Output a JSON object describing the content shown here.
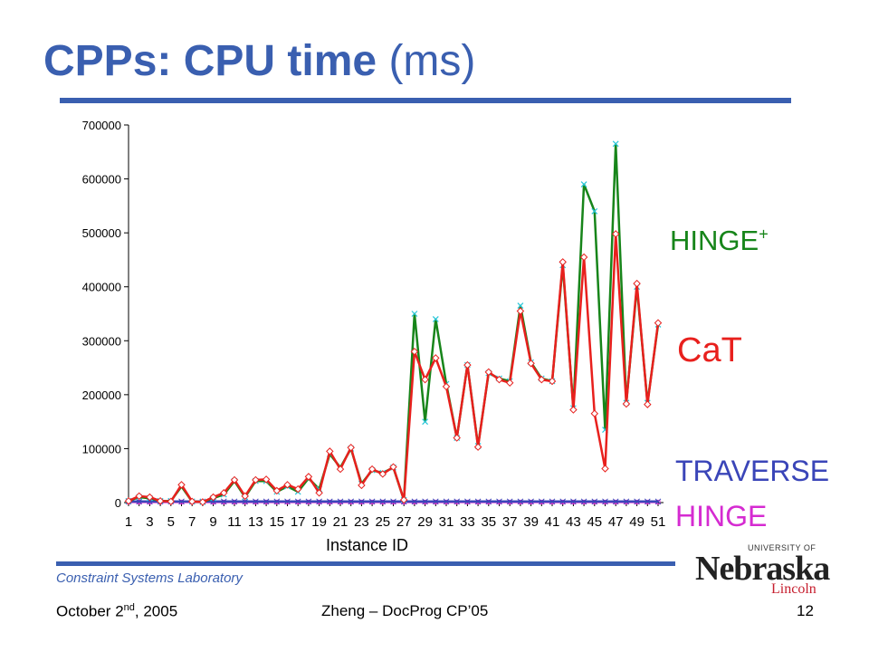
{
  "slide": {
    "title_bold": "CPPs: CPU time",
    "title_rest": "(ms)",
    "lab_name": "Constraint Systems Laboratory",
    "footer_date_main": "October 2",
    "footer_date_sup": "nd",
    "footer_date_end": ", 2005",
    "footer_center": "Zheng – DocProg CP’05",
    "slide_number": "12"
  },
  "logo": {
    "university_of": "UNIVERSITY OF",
    "name": "Nebraska",
    "campus": "Lincoln"
  },
  "colors": {
    "title_blue": "#3a5fb0",
    "cat_red": "#e8201d",
    "hinge_plus_green": "#17851a",
    "traverse_blue": "#3a45b8",
    "hinge_magenta": "#d52bd1",
    "marker_cyan": "#27c6d9"
  },
  "chart_data": {
    "type": "line",
    "xlabel": "Instance ID",
    "ylim": [
      0,
      700000
    ],
    "yticks": [
      0,
      100000,
      200000,
      300000,
      400000,
      500000,
      600000,
      700000
    ],
    "x": [
      1,
      2,
      3,
      4,
      5,
      6,
      7,
      8,
      9,
      10,
      11,
      12,
      13,
      14,
      15,
      16,
      17,
      18,
      19,
      20,
      21,
      22,
      23,
      24,
      25,
      26,
      27,
      28,
      29,
      30,
      31,
      32,
      33,
      34,
      35,
      36,
      37,
      38,
      39,
      40,
      41,
      42,
      43,
      44,
      45,
      46,
      47,
      48,
      49,
      50,
      51
    ],
    "xtick_labels": [
      "1",
      "3",
      "5",
      "7",
      "9",
      "11",
      "13",
      "15",
      "17",
      "19",
      "21",
      "23",
      "25",
      "27",
      "29",
      "31",
      "33",
      "35",
      "37",
      "39",
      "41",
      "43",
      "45",
      "47",
      "49",
      "51"
    ],
    "series": [
      {
        "name": "HINGE",
        "label_main": "HINGE",
        "color": "#d52bd1",
        "values": [
          1000,
          1000,
          1000,
          1000,
          1000,
          1000,
          1000,
          1000,
          1000,
          1000,
          1000,
          1000,
          1000,
          1000,
          1000,
          1000,
          1000,
          1000,
          1000,
          1000,
          1000,
          1000,
          1000,
          1000,
          1000,
          1000,
          1000,
          1000,
          1000,
          1000,
          1000,
          1000,
          1000,
          1000,
          1000,
          1000,
          1000,
          1000,
          1000,
          1000,
          1000,
          1000,
          1000,
          1000,
          1000,
          1000,
          1000,
          1000,
          1000,
          1000,
          1000
        ]
      },
      {
        "name": "TRAVERSE",
        "label_main": "TRAVERSE",
        "color": "#3a45b8",
        "values": [
          2000,
          2000,
          2000,
          2000,
          2000,
          2000,
          2000,
          2000,
          2000,
          2000,
          2000,
          2000,
          2000,
          2000,
          2000,
          2000,
          2000,
          2000,
          2000,
          2000,
          2000,
          2000,
          2000,
          2000,
          2000,
          2000,
          2000,
          2000,
          2000,
          2000,
          2000,
          2000,
          2000,
          2000,
          2000,
          2000,
          2000,
          2000,
          2000,
          2000,
          2000,
          2000,
          2000,
          2000,
          2000,
          2000,
          2000,
          2000,
          2000,
          2000,
          2000
        ]
      },
      {
        "name": "HINGE+",
        "label_main": "HINGE",
        "label_sup": "+",
        "color": "#17851a",
        "values": [
          3000,
          10000,
          8000,
          3000,
          3000,
          30000,
          2000,
          1000,
          8000,
          15000,
          40000,
          10000,
          40000,
          40000,
          20000,
          30000,
          20000,
          45000,
          25000,
          90000,
          65000,
          100000,
          35000,
          60000,
          55000,
          65000,
          5000,
          350000,
          150000,
          340000,
          220000,
          120000,
          255000,
          105000,
          240000,
          230000,
          225000,
          365000,
          260000,
          230000,
          225000,
          440000,
          175000,
          590000,
          540000,
          135000,
          665000,
          185000,
          400000,
          185000,
          330000
        ]
      },
      {
        "name": "CaT",
        "label_main": "CaT",
        "color": "#e8201d",
        "values": [
          3000,
          12000,
          10000,
          3000,
          2000,
          33000,
          2000,
          1000,
          10000,
          18000,
          42000,
          12000,
          42000,
          43000,
          22000,
          33000,
          25000,
          48000,
          18000,
          95000,
          62000,
          102000,
          32000,
          62000,
          53000,
          66000,
          5000,
          280000,
          228000,
          268000,
          215000,
          120000,
          255000,
          103000,
          242000,
          228000,
          222000,
          355000,
          258000,
          228000,
          225000,
          446000,
          172000,
          455000,
          165000,
          63000,
          498000,
          183000,
          406000,
          182000,
          333000
        ]
      }
    ]
  }
}
